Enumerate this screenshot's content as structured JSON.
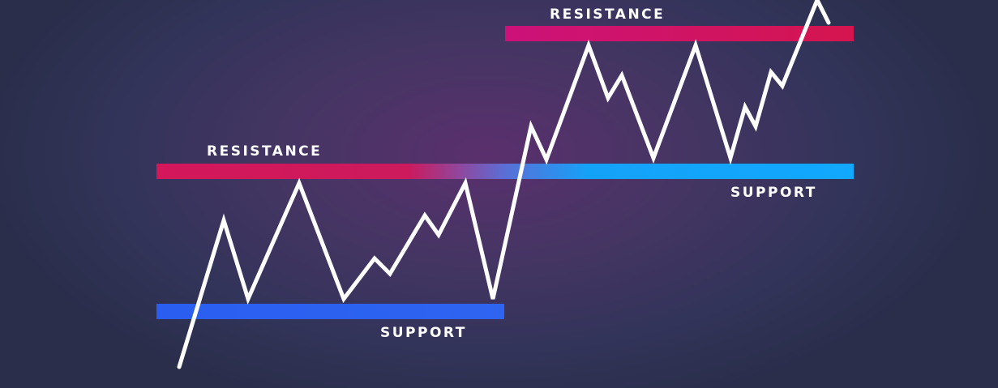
{
  "labels": {
    "resistance_left": "RESISTANCE",
    "support_left": "SUPPORT",
    "resistance_right": "RESISTANCE",
    "support_right": "SUPPORT"
  },
  "colors": {
    "background": "#2b2d4c",
    "resistance": "#d3175a",
    "resistance_alt": "#c8106a",
    "support": "#2d63ef",
    "support_alt": "#13a6ff",
    "price_line": "#ffffff",
    "label_text": "#ffffff"
  }
}
